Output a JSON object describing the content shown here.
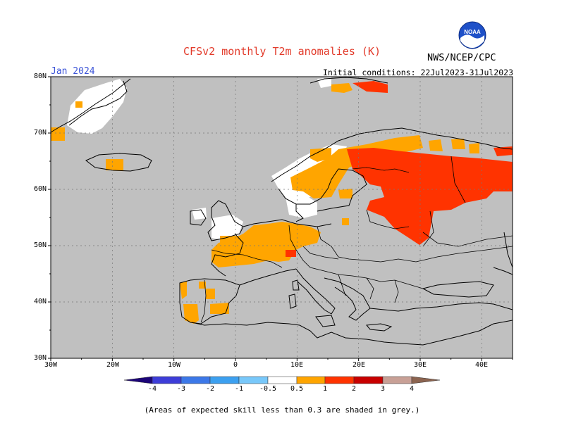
{
  "header": {
    "title": "CFSv2 monthly T2m anomalies (K)",
    "month": "Jan 2024",
    "initial_conditions": "Initial conditions: 22Jul2023-31Jul2023",
    "agency": "NWS/NCEP/CPC",
    "logo_text": "NOAA"
  },
  "map": {
    "lat_labels": [
      "80N",
      "70N",
      "60N",
      "50N",
      "40N",
      "30N"
    ],
    "lon_labels": [
      "30W",
      "20W",
      "10W",
      "0",
      "10E",
      "20E",
      "30E",
      "40E"
    ],
    "colors": {
      "skill_low_grey": "#c0c0c0",
      "neutral_white": "#ffffff",
      "warm_0_5_to_1": "#ffa500",
      "warm_1_to_2": "#ff3300",
      "warm_2_to_3": "#cc0000",
      "warm_3_to_4": "#a00000"
    }
  },
  "colorbar": {
    "labels": [
      "-4",
      "-3",
      "-2",
      "-1",
      "-0.5",
      "0.5",
      "1",
      "2",
      "3",
      "4"
    ],
    "colors": [
      "#1c0578",
      "#3d3dd8",
      "#3c78e8",
      "#3ca0f0",
      "#78c8fa",
      "#ffffff",
      "#ffa500",
      "#ff3300",
      "#c80000",
      "#9c0000",
      "#c8a096",
      "#8c6450"
    ]
  },
  "footnote": "(Areas of expected skill less than 0.3 are shaded in grey.)"
}
